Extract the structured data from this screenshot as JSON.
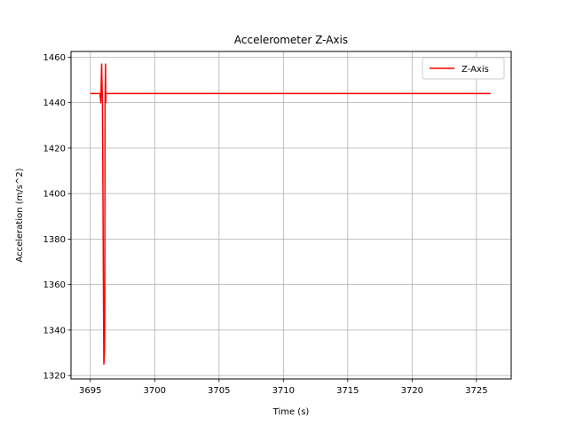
{
  "chart_data": {
    "type": "line",
    "title": "Accelerometer Z-Axis",
    "xlabel": "Time (s)",
    "ylabel": "Acceleration (m/s^2)",
    "xlim": [
      3693.5,
      3727.7
    ],
    "ylim": [
      1318.5,
      1462.5
    ],
    "xticks": [
      3695,
      3700,
      3705,
      3710,
      3715,
      3720,
      3725
    ],
    "yticks": [
      1320,
      1340,
      1360,
      1380,
      1400,
      1420,
      1440,
      1460
    ],
    "grid": true,
    "legend_position": "top-right",
    "series": [
      {
        "name": "Z-Axis",
        "color": "#ff0000",
        "x": [
          3695.0,
          3695.75,
          3695.82,
          3695.88,
          3695.94,
          3695.98,
          3696.02,
          3696.05,
          3696.1,
          3696.12,
          3696.15,
          3696.18,
          3696.2,
          3696.22,
          3696.25,
          3726.1
        ],
        "y": [
          1444,
          1444,
          1440,
          1457,
          1441,
          1400,
          1360,
          1325,
          1330,
          1340,
          1441,
          1457,
          1440,
          1444,
          1444,
          1444
        ]
      }
    ]
  }
}
